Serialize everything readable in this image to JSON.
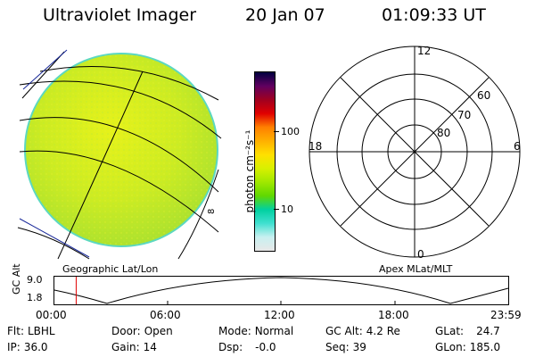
{
  "header": {
    "instrument": "Ultraviolet Imager",
    "date": "20 Jan 07",
    "time": "01:09:33 UT"
  },
  "colorbar": {
    "label": "photon cm⁻²s⁻¹",
    "tick_100": "100",
    "tick_10": "10",
    "colors": [
      "#e8e8e8",
      "#c8f0f0",
      "#40e0d0",
      "#00d0a0",
      "#60d800",
      "#a0e800",
      "#d8f000",
      "#ffe000",
      "#ffb000",
      "#ff8000",
      "#e00000",
      "#a00020",
      "#600060",
      "#000040"
    ]
  },
  "image_panel": {
    "label": "Geographic Lat/Lon",
    "side_mark": "8"
  },
  "polar_panel": {
    "label": "Apex MLat/MLT",
    "mlt_top": "12",
    "mlt_left": "18",
    "mlt_right": "6",
    "mlt_bottom": "0",
    "mlat_60": "60",
    "mlat_70": "70",
    "mlat_80": "80"
  },
  "altitude_plot": {
    "ylabel": "GC Alt",
    "ymax": "9.0",
    "ymin": "1.8",
    "xticks": [
      "00:00",
      "06:00",
      "12:00",
      "18:00",
      "23:59"
    ],
    "current_time_fraction": 0.048
  },
  "info": {
    "flt_label": "Flt:",
    "flt_value": "LBHL",
    "door_label": "Door:",
    "door_value": "Open",
    "mode_label": "Mode:",
    "mode_value": "Normal",
    "gcalt_label": "GC Alt:",
    "gcalt_value": "4.2 Re",
    "glat_label": "GLat:",
    "glat_value": "24.7",
    "ip_label": "IP:",
    "ip_value": "36.0",
    "gain_label": "Gain:",
    "gain_value": "14",
    "dsp_label": "Dsp:",
    "dsp_value": "-0.0",
    "seq_label": "Seq:",
    "seq_value": "39",
    "glon_label": "GLon:",
    "glon_value": "185.0"
  }
}
